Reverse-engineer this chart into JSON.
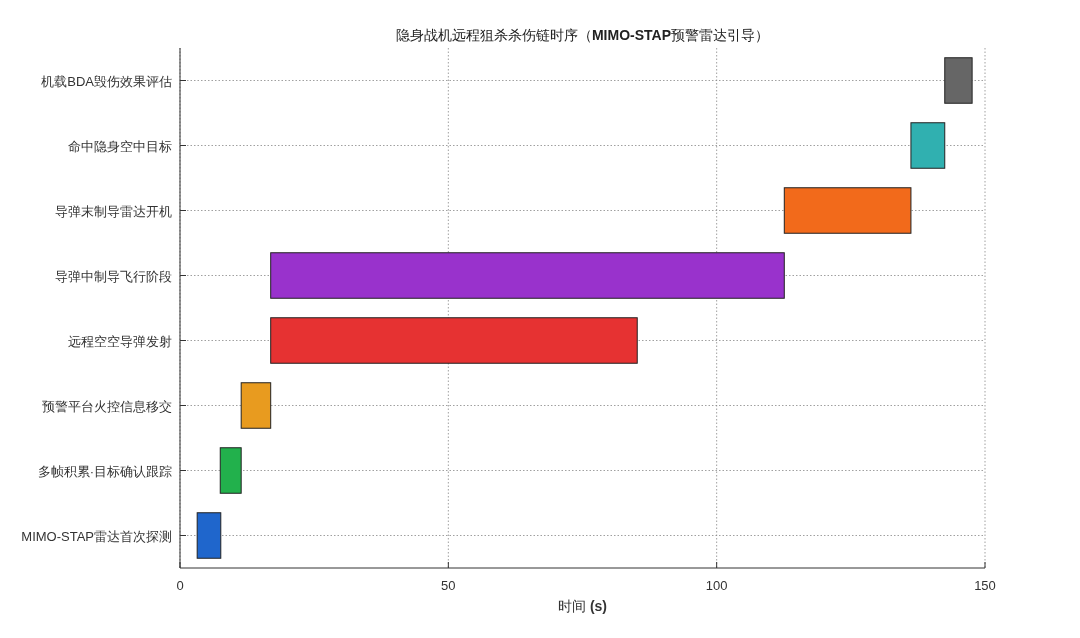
{
  "chart_data": {
    "type": "bar",
    "orientation": "horizontal",
    "title": "隐身战机远程狙杀杀伤链时序（MIMO-STAP预警雷达引导）",
    "xlabel": "时间 (s)",
    "categories": [
      "机载BDA毁伤效果评估",
      "命中隐身空中目标",
      "导弹末制导雷达开机",
      "导弹中制导飞行阶段",
      "远程空空导弹发射",
      "预警平台火控信息移交",
      "多帧积累·目标确认跟踪",
      "MIMO-STAP雷达首次探测"
    ],
    "base": [
      142.5,
      136.2,
      112.6,
      16.9,
      16.9,
      11.4,
      7.5,
      3.2
    ],
    "values": [
      5.1,
      6.3,
      23.6,
      95.7,
      68.3,
      5.5,
      3.9,
      4.4
    ],
    "colors": [
      "#666666",
      "#30b0b0",
      "#f26a1b",
      "#9932cc",
      "#e63232",
      "#e89b1f",
      "#22b14c",
      "#1f66cc"
    ],
    "xlim": [
      0,
      150
    ],
    "xticks": [
      0,
      50,
      100,
      150
    ],
    "grid": true
  }
}
